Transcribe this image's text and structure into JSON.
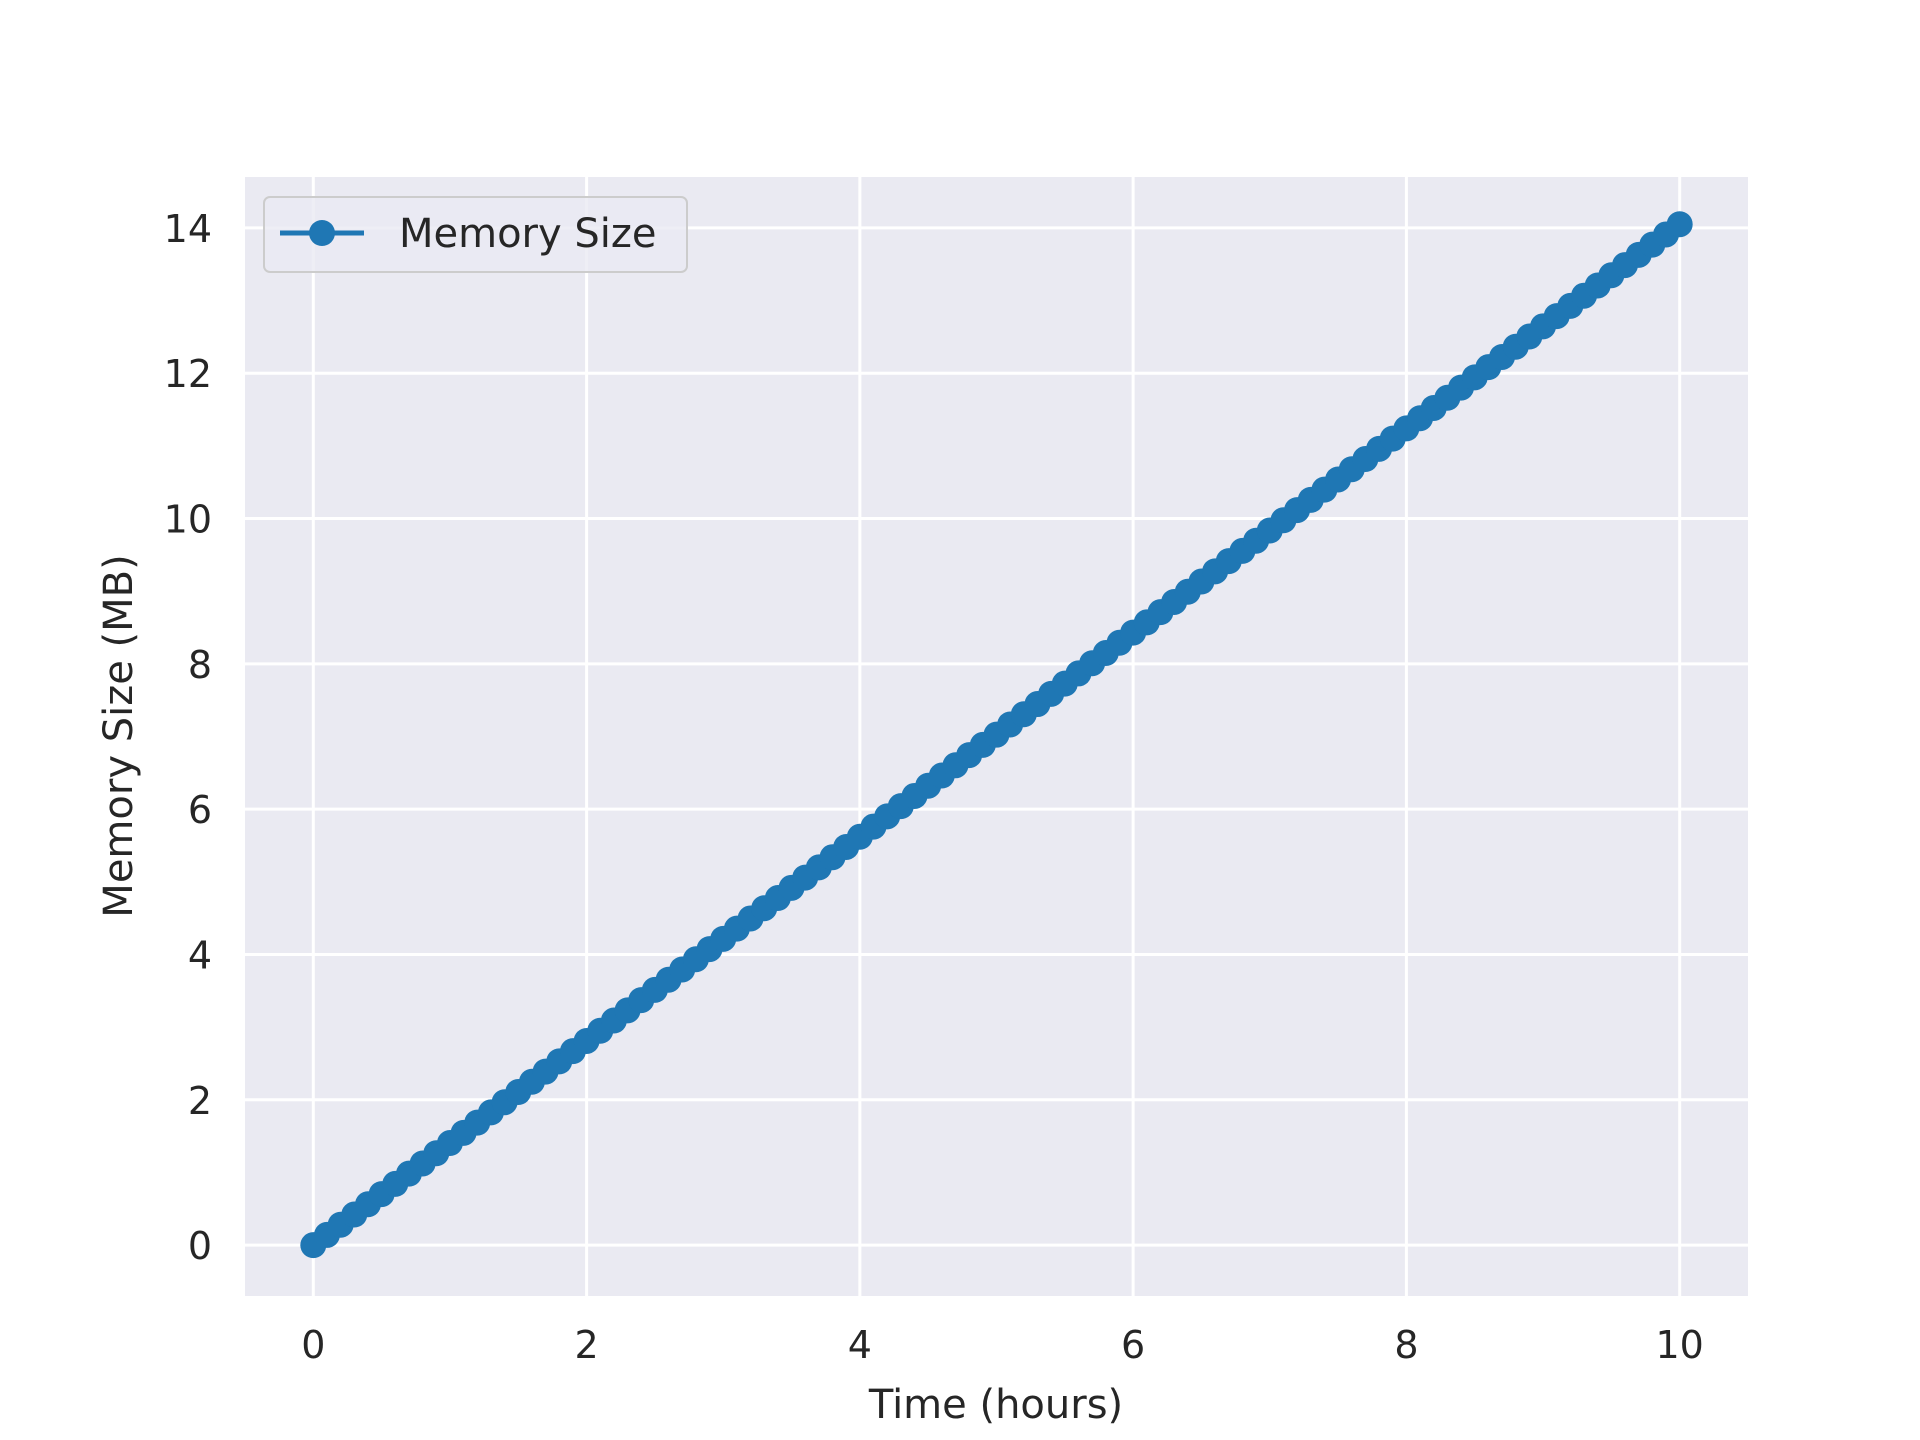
{
  "chart_data": {
    "type": "line",
    "title": "",
    "xlabel": "Time (hours)",
    "ylabel": "Memory Size (MB)",
    "xlim": [
      -0.5,
      10.5
    ],
    "ylim": [
      -0.7,
      14.7
    ],
    "xticks": [
      0,
      2,
      4,
      6,
      8,
      10
    ],
    "yticks": [
      0,
      2,
      4,
      6,
      8,
      10,
      12,
      14
    ],
    "xtick_labels": [
      "0",
      "2",
      "4",
      "6",
      "8",
      "10"
    ],
    "ytick_labels": [
      "0",
      "2",
      "4",
      "6",
      "8",
      10,
      "12",
      "14"
    ],
    "grid": true,
    "legend_position": "top-left",
    "background": "#eaeaf2",
    "grid_color": "#ffffff",
    "series": [
      {
        "name": "Memory Size",
        "color": "#1f77b4",
        "marker": "circle",
        "x_start": 0,
        "x_end": 10,
        "num_points": 101,
        "y_start": 0,
        "y_end": 14.05
      }
    ]
  }
}
